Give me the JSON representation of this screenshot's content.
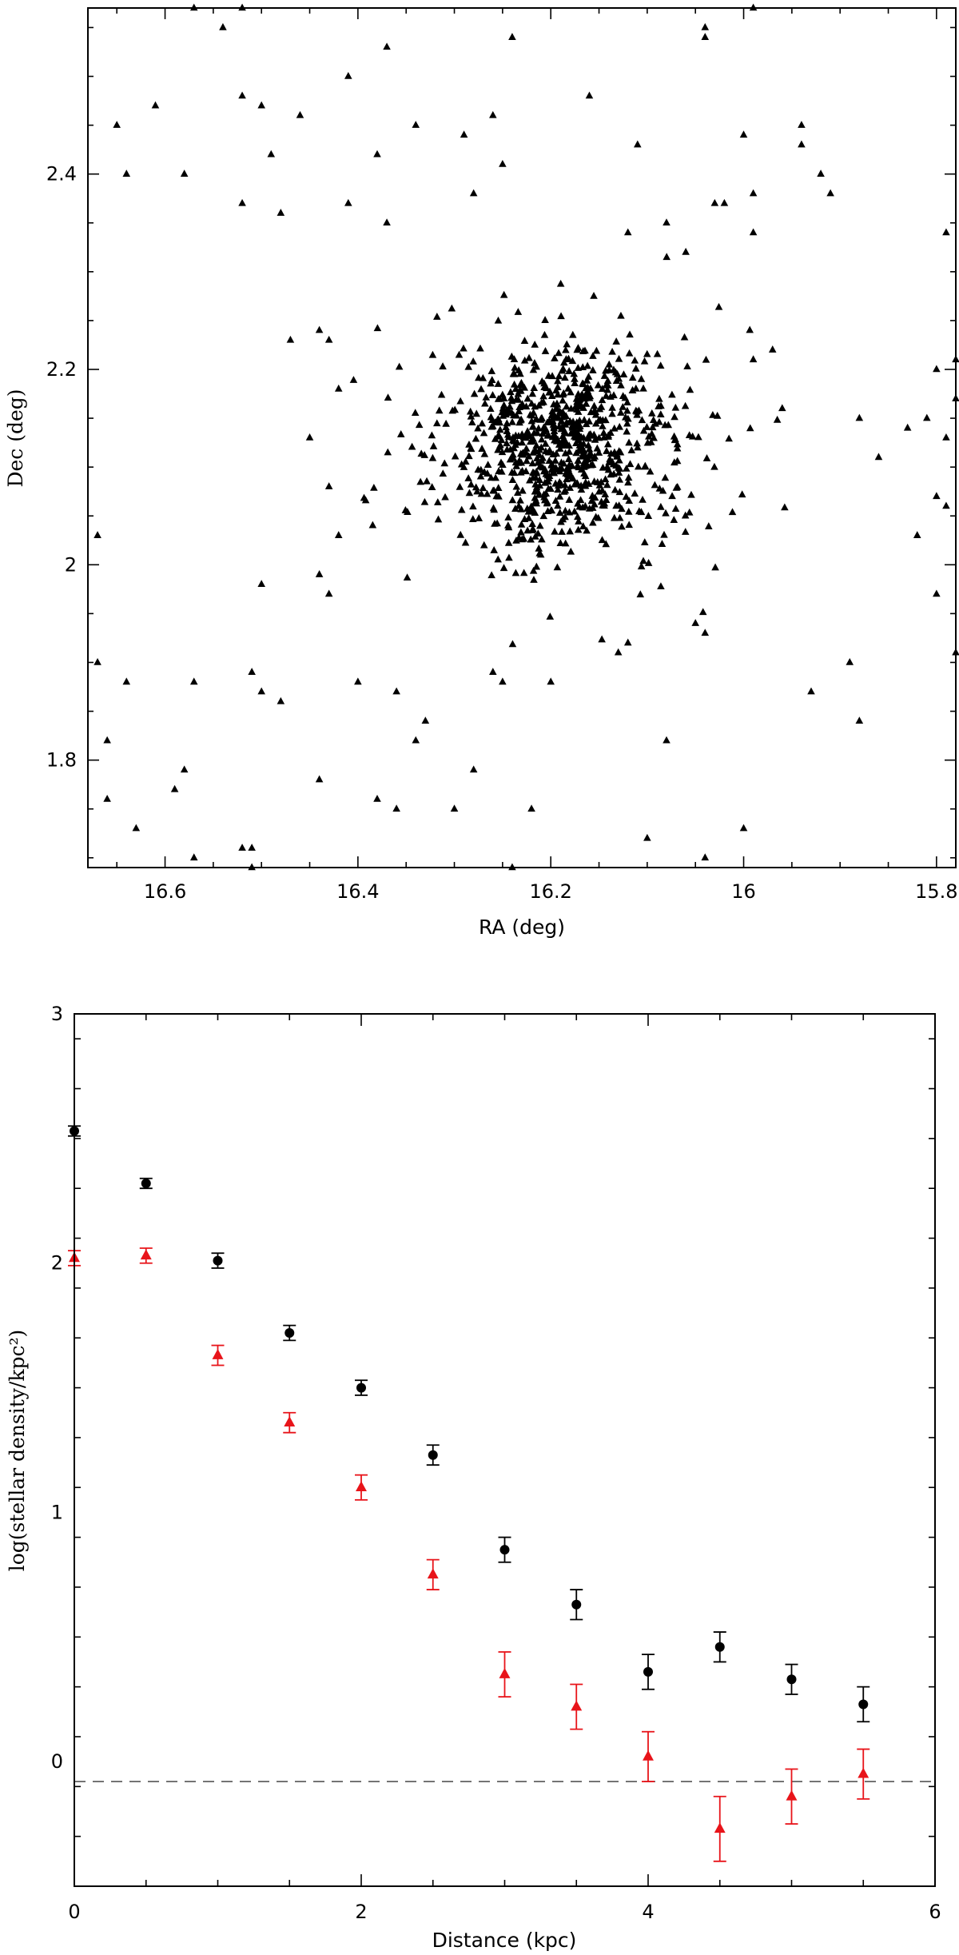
{
  "chart_data": [
    {
      "type": "scatter",
      "title": "",
      "xlabel": "RA (deg)",
      "ylabel": "Dec (deg)",
      "xlim": [
        16.68,
        15.78
      ],
      "ylim": [
        1.69,
        2.57
      ],
      "x_reversed": true,
      "grid": false,
      "marker": "triangle",
      "marker_color": "#000000",
      "xticks": [
        16.6,
        16.4,
        16.2,
        16.0,
        15.8
      ],
      "xtick_labels": [
        "16.6",
        "16.4",
        "16.2",
        "16",
        "15.8"
      ],
      "yticks": [
        1.8,
        2.0,
        2.2,
        2.4
      ],
      "ytick_labels": [
        "1.8",
        "2",
        "2.2",
        "2.4"
      ],
      "cluster": {
        "center": [
          16.19,
          2.12
        ],
        "count": 900
      },
      "field_points": [
        [
          16.57,
          2.57
        ],
        [
          16.54,
          2.55
        ],
        [
          16.52,
          2.57
        ],
        [
          16.04,
          2.55
        ],
        [
          16.04,
          2.54
        ],
        [
          15.99,
          2.57
        ],
        [
          16.37,
          2.53
        ],
        [
          16.16,
          2.48
        ],
        [
          16.52,
          2.48
        ],
        [
          16.5,
          2.47
        ],
        [
          16.41,
          2.5
        ],
        [
          16.46,
          2.46
        ],
        [
          16.61,
          2.47
        ],
        [
          16.65,
          2.45
        ],
        [
          16.26,
          2.46
        ],
        [
          16.24,
          2.54
        ],
        [
          16.34,
          2.45
        ],
        [
          16.29,
          2.44
        ],
        [
          16.25,
          2.41
        ],
        [
          16.11,
          2.43
        ],
        [
          16.03,
          2.37
        ],
        [
          16.0,
          2.44
        ],
        [
          15.94,
          2.45
        ],
        [
          15.94,
          2.43
        ],
        [
          15.92,
          2.4
        ],
        [
          15.91,
          2.38
        ],
        [
          15.99,
          2.38
        ],
        [
          15.99,
          2.34
        ],
        [
          16.64,
          2.4
        ],
        [
          16.58,
          2.4
        ],
        [
          16.52,
          2.37
        ],
        [
          16.49,
          2.42
        ],
        [
          16.48,
          2.36
        ],
        [
          16.41,
          2.37
        ],
        [
          16.38,
          2.42
        ],
        [
          16.37,
          2.35
        ],
        [
          16.28,
          2.38
        ],
        [
          16.08,
          2.35
        ],
        [
          16.06,
          2.32
        ],
        [
          16.02,
          2.37
        ],
        [
          16.12,
          2.34
        ],
        [
          15.79,
          2.34
        ],
        [
          15.8,
          2.2
        ],
        [
          15.78,
          2.21
        ],
        [
          15.78,
          2.17
        ],
        [
          15.83,
          2.14
        ],
        [
          15.81,
          2.15
        ],
        [
          15.79,
          2.13
        ],
        [
          15.88,
          2.15
        ],
        [
          15.86,
          2.11
        ],
        [
          15.8,
          2.07
        ],
        [
          15.79,
          2.06
        ],
        [
          15.82,
          2.03
        ],
        [
          15.97,
          2.22
        ],
        [
          15.99,
          2.21
        ],
        [
          15.96,
          2.16
        ],
        [
          16.47,
          2.23
        ],
        [
          16.44,
          2.24
        ],
        [
          16.43,
          2.23
        ],
        [
          16.42,
          2.18
        ],
        [
          16.45,
          2.13
        ],
        [
          16.43,
          2.08
        ],
        [
          16.42,
          2.03
        ],
        [
          16.44,
          1.99
        ],
        [
          16.43,
          1.97
        ],
        [
          16.5,
          1.98
        ],
        [
          16.48,
          1.86
        ],
        [
          16.51,
          1.89
        ],
        [
          16.5,
          1.87
        ],
        [
          16.4,
          1.88
        ],
        [
          16.67,
          2.03
        ],
        [
          16.67,
          1.9
        ],
        [
          16.66,
          1.82
        ],
        [
          16.64,
          1.88
        ],
        [
          16.57,
          1.88
        ],
        [
          16.58,
          1.79
        ],
        [
          16.59,
          1.77
        ],
        [
          16.66,
          1.76
        ],
        [
          16.63,
          1.73
        ],
        [
          16.57,
          1.7
        ],
        [
          16.52,
          1.71
        ],
        [
          16.51,
          1.71
        ],
        [
          16.51,
          1.69
        ],
        [
          16.44,
          1.78
        ],
        [
          16.38,
          1.76
        ],
        [
          16.36,
          1.75
        ],
        [
          16.3,
          1.75
        ],
        [
          16.28,
          1.79
        ],
        [
          16.22,
          1.75
        ],
        [
          16.24,
          1.69
        ],
        [
          16.1,
          1.72
        ],
        [
          16.04,
          1.7
        ],
        [
          16.0,
          1.73
        ],
        [
          16.08,
          1.82
        ],
        [
          16.34,
          1.82
        ],
        [
          16.33,
          1.84
        ],
        [
          16.36,
          1.87
        ],
        [
          16.26,
          1.89
        ],
        [
          16.25,
          1.88
        ],
        [
          16.2,
          1.88
        ],
        [
          15.93,
          1.87
        ],
        [
          15.89,
          1.9
        ],
        [
          15.88,
          1.84
        ],
        [
          15.78,
          1.91
        ],
        [
          15.8,
          1.97
        ],
        [
          16.05,
          1.94
        ],
        [
          16.04,
          1.93
        ],
        [
          16.12,
          1.92
        ],
        [
          16.13,
          1.91
        ]
      ]
    },
    {
      "type": "scatter",
      "title": "",
      "xlabel": "Distance (kpc)",
      "ylabel": "log(stellar density/kpc²)",
      "xlim": [
        0,
        6
      ],
      "ylim": [
        -0.5,
        3
      ],
      "grid": false,
      "xticks": [
        0,
        2,
        4,
        6
      ],
      "xtick_labels": [
        "0",
        "2",
        "4",
        "6"
      ],
      "yticks": [
        0,
        1,
        2,
        3
      ],
      "ytick_labels": [
        "0",
        "1",
        "2",
        "3"
      ],
      "reference_line": {
        "y": -0.08,
        "style": "dashed",
        "color": "#555555"
      },
      "series": [
        {
          "marker": "circle",
          "color": "#000000",
          "x": [
            0.0,
            0.5,
            1.0,
            1.5,
            2.0,
            2.5,
            3.0,
            3.5,
            4.0,
            4.5,
            5.0,
            5.5
          ],
          "y": [
            2.53,
            2.32,
            2.01,
            1.72,
            1.5,
            1.23,
            0.85,
            0.63,
            0.36,
            0.46,
            0.33,
            0.23
          ],
          "err": [
            0.02,
            0.02,
            0.03,
            0.03,
            0.03,
            0.04,
            0.05,
            0.06,
            0.07,
            0.06,
            0.06,
            0.07
          ]
        },
        {
          "marker": "triangle",
          "color": "#e8141a",
          "x": [
            0.0,
            0.5,
            1.0,
            1.5,
            2.0,
            2.5,
            3.0,
            3.5,
            4.0,
            4.5,
            5.0,
            5.5
          ],
          "y": [
            2.02,
            2.03,
            1.63,
            1.36,
            1.1,
            0.75,
            0.35,
            0.22,
            0.02,
            -0.27,
            -0.14,
            -0.05
          ],
          "err": [
            0.03,
            0.03,
            0.04,
            0.04,
            0.05,
            0.06,
            0.09,
            0.09,
            0.1,
            0.13,
            0.11,
            0.1
          ]
        }
      ]
    }
  ]
}
